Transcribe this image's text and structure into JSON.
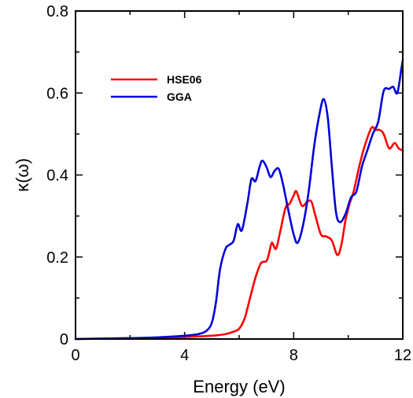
{
  "chart_data": {
    "type": "line",
    "title": "",
    "xlabel": "Energy (eV)",
    "ylabel": "κ(ω)",
    "xlim": [
      0,
      12
    ],
    "ylim": [
      0,
      0.8
    ],
    "xticks": [
      {
        "value": 0,
        "label": "0"
      },
      {
        "value": 4,
        "label": "4"
      },
      {
        "value": 8,
        "label": "8"
      },
      {
        "value": 12,
        "label": "12"
      }
    ],
    "yticks": [
      {
        "value": 0,
        "label": "0"
      },
      {
        "value": 0.2,
        "label": "0.2"
      },
      {
        "value": 0.4,
        "label": "0.4"
      },
      {
        "value": 0.6,
        "label": "0.6"
      },
      {
        "value": 0.8,
        "label": "0.8"
      }
    ],
    "x_minor_ticks": [
      2,
      6,
      10
    ],
    "y_minor_ticks": [
      0.1,
      0.3,
      0.5,
      0.7
    ],
    "grid": false,
    "legend_position": "upper-left",
    "series": [
      {
        "name": "HSE06",
        "color": "#ff0000",
        "points": [
          [
            0,
            0
          ],
          [
            1,
            0.001
          ],
          [
            2,
            0.002
          ],
          [
            3,
            0.003
          ],
          [
            4,
            0.005
          ],
          [
            5,
            0.008
          ],
          [
            5.5,
            0.012
          ],
          [
            5.8,
            0.018
          ],
          [
            6.0,
            0.025
          ],
          [
            6.2,
            0.05
          ],
          [
            6.4,
            0.1
          ],
          [
            6.6,
            0.15
          ],
          [
            6.8,
            0.185
          ],
          [
            7.0,
            0.19
          ],
          [
            7.1,
            0.21
          ],
          [
            7.2,
            0.235
          ],
          [
            7.35,
            0.22
          ],
          [
            7.5,
            0.26
          ],
          [
            7.7,
            0.32
          ],
          [
            7.85,
            0.33
          ],
          [
            8.0,
            0.35
          ],
          [
            8.1,
            0.36
          ],
          [
            8.3,
            0.325
          ],
          [
            8.5,
            0.335
          ],
          [
            8.65,
            0.335
          ],
          [
            8.8,
            0.3
          ],
          [
            9.0,
            0.255
          ],
          [
            9.2,
            0.25
          ],
          [
            9.4,
            0.24
          ],
          [
            9.6,
            0.205
          ],
          [
            9.75,
            0.23
          ],
          [
            9.9,
            0.29
          ],
          [
            10.05,
            0.33
          ],
          [
            10.2,
            0.36
          ],
          [
            10.4,
            0.42
          ],
          [
            10.6,
            0.47
          ],
          [
            10.85,
            0.515
          ],
          [
            11.0,
            0.51
          ],
          [
            11.15,
            0.51
          ],
          [
            11.3,
            0.5
          ],
          [
            11.5,
            0.465
          ],
          [
            11.7,
            0.478
          ],
          [
            11.85,
            0.465
          ],
          [
            12.0,
            0.46
          ]
        ]
      },
      {
        "name": "GGA",
        "color": "#0000dd",
        "points": [
          [
            0,
            0
          ],
          [
            1,
            0.001
          ],
          [
            2,
            0.002
          ],
          [
            3,
            0.004
          ],
          [
            4,
            0.008
          ],
          [
            4.5,
            0.012
          ],
          [
            4.8,
            0.02
          ],
          [
            5.0,
            0.04
          ],
          [
            5.15,
            0.09
          ],
          [
            5.3,
            0.17
          ],
          [
            5.5,
            0.22
          ],
          [
            5.65,
            0.23
          ],
          [
            5.8,
            0.24
          ],
          [
            5.95,
            0.28
          ],
          [
            6.1,
            0.265
          ],
          [
            6.3,
            0.33
          ],
          [
            6.45,
            0.39
          ],
          [
            6.6,
            0.385
          ],
          [
            6.75,
            0.42
          ],
          [
            6.85,
            0.435
          ],
          [
            7.0,
            0.42
          ],
          [
            7.15,
            0.395
          ],
          [
            7.3,
            0.41
          ],
          [
            7.45,
            0.415
          ],
          [
            7.6,
            0.38
          ],
          [
            7.8,
            0.315
          ],
          [
            8.0,
            0.255
          ],
          [
            8.15,
            0.235
          ],
          [
            8.35,
            0.28
          ],
          [
            8.55,
            0.36
          ],
          [
            8.75,
            0.47
          ],
          [
            8.95,
            0.55
          ],
          [
            9.1,
            0.585
          ],
          [
            9.25,
            0.54
          ],
          [
            9.4,
            0.42
          ],
          [
            9.55,
            0.31
          ],
          [
            9.7,
            0.285
          ],
          [
            9.9,
            0.305
          ],
          [
            10.1,
            0.345
          ],
          [
            10.3,
            0.36
          ],
          [
            10.5,
            0.42
          ],
          [
            10.7,
            0.46
          ],
          [
            10.9,
            0.5
          ],
          [
            11.1,
            0.53
          ],
          [
            11.3,
            0.605
          ],
          [
            11.5,
            0.61
          ],
          [
            11.65,
            0.615
          ],
          [
            11.8,
            0.6
          ],
          [
            11.95,
            0.66
          ],
          [
            12.0,
            0.68
          ]
        ]
      }
    ]
  }
}
